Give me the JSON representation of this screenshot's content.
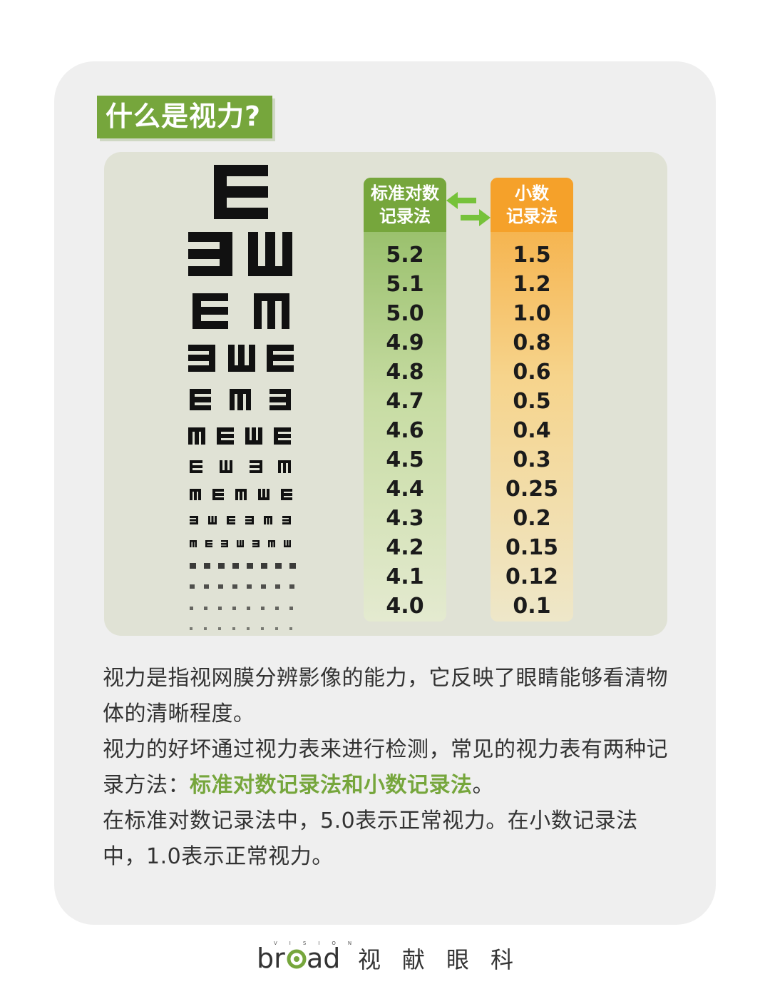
{
  "title": "什么是视力?",
  "chart": {
    "log_header_line1": "标准对数",
    "log_header_line2": "记录法",
    "decimal_header_line1": "小数",
    "decimal_header_line2": "记录法",
    "log_values": [
      "5.2",
      "5.1",
      "5.0",
      "4.9",
      "4.8",
      "4.7",
      "4.6",
      "4.5",
      "4.4",
      "4.3",
      "4.2",
      "4.1",
      "4.0"
    ],
    "decimal_values": [
      "1.5",
      "1.2",
      "1.0",
      "0.8",
      "0.6",
      "0.5",
      "0.4",
      "0.3",
      "0.25",
      "0.2",
      "0.15",
      "0.12",
      "0.1"
    ]
  },
  "description": {
    "p1": "视力是指视网膜分辨影像的能力，它反映了眼睛能够看清物体的清晰程度。",
    "p2_before": "视力的好坏通过视力表来进行检测，常见的视力表有两种记录方法：",
    "p2_highlight": "标准对数记录法和小数记录法",
    "p2_after": "。",
    "p3": "在标准对数记录法中，5.0表示正常视力。在小数记录法中，1.0表示正常视力。"
  },
  "footer": {
    "brand_word": "broad",
    "brand_super": "VISION",
    "brand_cn": "视献眼科"
  },
  "colors": {
    "green": "#76a63c",
    "orange": "#f5a12a",
    "card_bg": "#efefef"
  }
}
